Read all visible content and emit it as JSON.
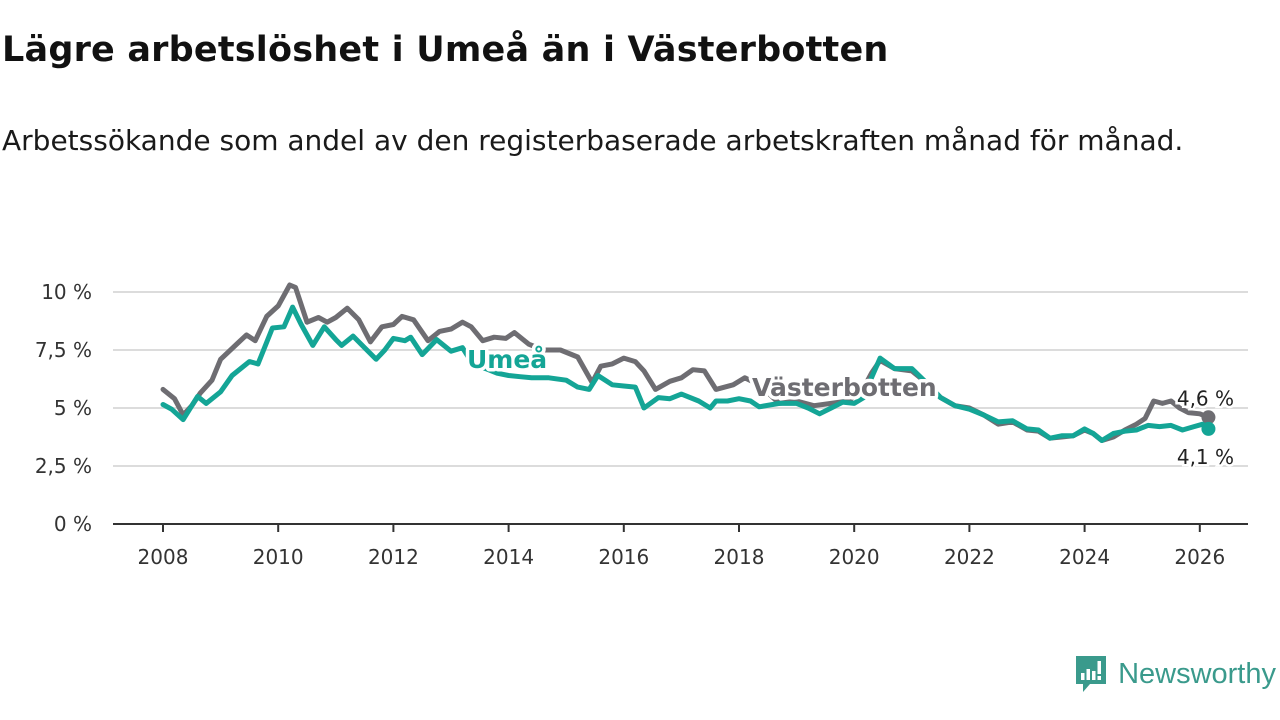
{
  "chart_data": {
    "type": "line",
    "title": "Lägre arbetslöshet i Umeå än i Västerbotten",
    "subtitle": "Arbetssökande som andel av den registerbaserade arbetskraften månad för månad.",
    "xlabel": "",
    "ylabel": "",
    "xlim": [
      2007.75,
      2027.0
    ],
    "ylim": [
      0,
      10
    ],
    "grid": true,
    "x_ticks": [
      {
        "value": 2008,
        "label": "2008"
      },
      {
        "value": 2010,
        "label": "2010"
      },
      {
        "value": 2012,
        "label": "2012"
      },
      {
        "value": 2014,
        "label": "2014"
      },
      {
        "value": 2016,
        "label": "2016"
      },
      {
        "value": 2018,
        "label": "2018"
      },
      {
        "value": 2020,
        "label": "2020"
      },
      {
        "value": 2022,
        "label": "2022"
      },
      {
        "value": 2024,
        "label": "2024"
      },
      {
        "value": 2026,
        "label": "2026"
      }
    ],
    "y_ticks": [
      {
        "value": 0,
        "label": "0 %"
      },
      {
        "value": 2.5,
        "label": "2,5 %"
      },
      {
        "value": 5,
        "label": "5 %"
      },
      {
        "value": 7.5,
        "label": "7,5 %"
      },
      {
        "value": 10,
        "label": "10 %"
      }
    ],
    "series": [
      {
        "name": "Västerbotten",
        "color": "#6e6d72",
        "last_label": "4,6 %",
        "x": [
          2008.0,
          2008.2,
          2008.35,
          2008.5,
          2008.65,
          2008.85,
          2009.0,
          2009.3,
          2009.45,
          2009.6,
          2009.8,
          2010.0,
          2010.2,
          2010.3,
          2010.5,
          2010.7,
          2010.85,
          2011.0,
          2011.2,
          2011.4,
          2011.6,
          2011.8,
          2012.0,
          2012.15,
          2012.35,
          2012.6,
          2012.8,
          2013.0,
          2013.2,
          2013.35,
          2013.55,
          2013.75,
          2013.95,
          2014.1,
          2014.35,
          2014.6,
          2014.9,
          2015.2,
          2015.45,
          2015.6,
          2015.8,
          2016.0,
          2016.2,
          2016.35,
          2016.55,
          2016.8,
          2017.0,
          2017.2,
          2017.4,
          2017.6,
          2017.9,
          2018.1,
          2018.35,
          2018.7,
          2019.0,
          2019.3,
          2019.6,
          2019.9,
          2020.15,
          2020.3,
          2020.45,
          2020.7,
          2021.0,
          2021.25,
          2021.5,
          2021.75,
          2022.0,
          2022.25,
          2022.5,
          2022.75,
          2023.0,
          2023.2,
          2023.4,
          2023.6,
          2023.8,
          2024.0,
          2024.15,
          2024.3,
          2024.5,
          2024.7,
          2024.9,
          2025.05,
          2025.2,
          2025.35,
          2025.5,
          2025.65,
          2025.8,
          2026.0,
          2026.15
        ],
        "values": [
          5.8,
          5.4,
          4.7,
          5.1,
          5.65,
          6.2,
          7.1,
          7.8,
          8.15,
          7.9,
          8.95,
          9.4,
          10.3,
          10.2,
          8.7,
          8.9,
          8.7,
          8.9,
          9.3,
          8.8,
          7.85,
          8.5,
          8.6,
          8.95,
          8.8,
          7.9,
          8.3,
          8.4,
          8.7,
          8.5,
          7.9,
          8.05,
          8.0,
          8.25,
          7.75,
          7.5,
          7.5,
          7.2,
          6.1,
          6.8,
          6.9,
          7.15,
          7.0,
          6.6,
          5.8,
          6.15,
          6.3,
          6.65,
          6.6,
          5.8,
          6.0,
          6.3,
          6.0,
          5.2,
          5.3,
          5.1,
          5.2,
          5.3,
          5.8,
          6.5,
          7.05,
          6.7,
          6.6,
          6.1,
          5.45,
          5.1,
          5.0,
          4.7,
          4.3,
          4.4,
          4.05,
          4.0,
          3.7,
          3.75,
          3.8,
          4.05,
          3.9,
          3.6,
          3.75,
          4.05,
          4.3,
          4.55,
          5.3,
          5.2,
          5.3,
          5.0,
          4.8,
          4.75,
          4.6
        ]
      },
      {
        "name": "Umeå",
        "color": "#14a596",
        "last_label": "4,1 %",
        "x": [
          2008.0,
          2008.15,
          2008.35,
          2008.6,
          2008.75,
          2009.0,
          2009.2,
          2009.5,
          2009.65,
          2009.9,
          2010.1,
          2010.25,
          2010.4,
          2010.6,
          2010.8,
          2011.0,
          2011.1,
          2011.3,
          2011.5,
          2011.7,
          2011.85,
          2012.0,
          2012.2,
          2012.3,
          2012.5,
          2012.75,
          2013.0,
          2013.2,
          2013.4,
          2013.6,
          2013.8,
          2014.0,
          2014.2,
          2014.4,
          2014.7,
          2015.0,
          2015.2,
          2015.4,
          2015.55,
          2015.8,
          2016.0,
          2016.2,
          2016.35,
          2016.6,
          2016.8,
          2017.0,
          2017.3,
          2017.5,
          2017.6,
          2017.8,
          2018.0,
          2018.2,
          2018.35,
          2018.7,
          2019.0,
          2019.2,
          2019.4,
          2019.6,
          2019.8,
          2020.0,
          2020.2,
          2020.3,
          2020.45,
          2020.7,
          2021.0,
          2021.25,
          2021.5,
          2021.75,
          2022.0,
          2022.25,
          2022.5,
          2022.75,
          2023.0,
          2023.2,
          2023.4,
          2023.6,
          2023.8,
          2024.0,
          2024.15,
          2024.3,
          2024.5,
          2024.7,
          2024.9,
          2025.1,
          2025.3,
          2025.5,
          2025.7,
          2025.9,
          2026.05,
          2026.15
        ],
        "values": [
          5.15,
          4.95,
          4.5,
          5.5,
          5.2,
          5.7,
          6.4,
          7.0,
          6.9,
          8.45,
          8.5,
          9.35,
          8.6,
          7.7,
          8.5,
          7.95,
          7.7,
          8.1,
          7.6,
          7.1,
          7.5,
          8.0,
          7.9,
          8.05,
          7.3,
          7.95,
          7.45,
          7.6,
          6.8,
          6.7,
          6.5,
          6.4,
          6.35,
          6.3,
          6.3,
          6.2,
          5.9,
          5.8,
          6.4,
          6.0,
          5.95,
          5.9,
          5.0,
          5.45,
          5.4,
          5.6,
          5.3,
          5.0,
          5.3,
          5.3,
          5.4,
          5.3,
          5.05,
          5.2,
          5.2,
          5.0,
          4.75,
          5.0,
          5.25,
          5.2,
          5.5,
          6.3,
          7.15,
          6.7,
          6.7,
          6.1,
          5.45,
          5.1,
          4.95,
          4.7,
          4.4,
          4.45,
          4.1,
          4.05,
          3.7,
          3.8,
          3.8,
          4.1,
          3.9,
          3.6,
          3.9,
          4.0,
          4.05,
          4.25,
          4.2,
          4.25,
          4.05,
          4.2,
          4.3,
          4.1
        ]
      }
    ]
  },
  "brand": {
    "name": "Newsworthy"
  }
}
